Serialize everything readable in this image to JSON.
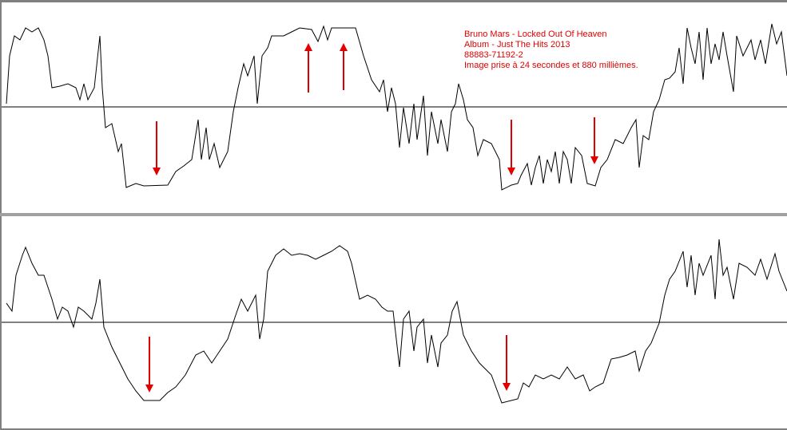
{
  "annotation": {
    "lines": [
      "Bruno Mars - Locked Out Of Heaven",
      "Album - Just The Hits 2013",
      "88883-71192-2",
      "Image prise à 24 secondes et 880 millièmes."
    ]
  }
}
